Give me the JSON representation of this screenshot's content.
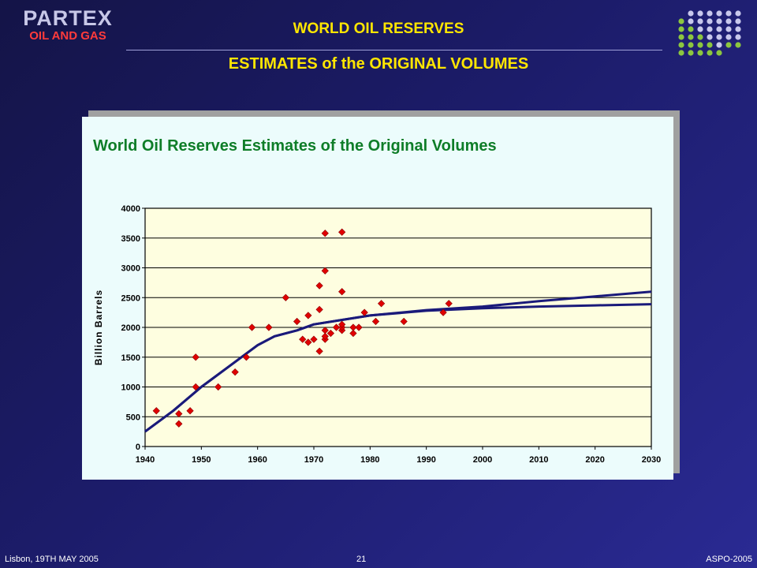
{
  "header": {
    "logo_main": "PARTEX",
    "logo_sub": "OIL AND GAS",
    "title": "WORLD OIL RESERVES",
    "subtitle": "ESTIMATES of the ORIGINAL VOLUMES"
  },
  "footer": {
    "left": "Lisbon, 19TH MAY 2005",
    "page": "21",
    "right": "ASPO-2005"
  },
  "colors": {
    "title_yellow": "#ffe600",
    "logo_red": "#ff3b3b",
    "chart_title_green": "#0e7d28",
    "plot_bg": "#fefee0",
    "marker_red": "#e00000",
    "curve_navy": "#1a1a7a",
    "dot_green": "#8cc63f",
    "dot_lavender": "#c8c8ec"
  },
  "chart_data": {
    "type": "scatter",
    "title": "World Oil Reserves Estimates of the Original Volumes",
    "ylabel": "Billion Barrels",
    "xlabel": "",
    "xlim": [
      1940,
      2030
    ],
    "ylim": [
      0,
      4000
    ],
    "xticks": [
      1940,
      1950,
      1960,
      1970,
      1980,
      1990,
      2000,
      2010,
      2020,
      2030
    ],
    "yticks": [
      0,
      500,
      1000,
      1500,
      2000,
      2500,
      3000,
      3500,
      4000
    ],
    "grid": "horizontal",
    "points": [
      [
        1942,
        600
      ],
      [
        1946,
        550
      ],
      [
        1946,
        380
      ],
      [
        1948,
        600
      ],
      [
        1949,
        1000
      ],
      [
        1949,
        1500
      ],
      [
        1953,
        1000
      ],
      [
        1956,
        1250
      ],
      [
        1958,
        1500
      ],
      [
        1959,
        2000
      ],
      [
        1962,
        2000
      ],
      [
        1965,
        2500
      ],
      [
        1967,
        2100
      ],
      [
        1968,
        1800
      ],
      [
        1969,
        1750
      ],
      [
        1969,
        2200
      ],
      [
        1970,
        1800
      ],
      [
        1971,
        1600
      ],
      [
        1971,
        2300
      ],
      [
        1971,
        2700
      ],
      [
        1972,
        1800
      ],
      [
        1972,
        1850
      ],
      [
        1972,
        1950
      ],
      [
        1972,
        2950
      ],
      [
        1972,
        3580
      ],
      [
        1973,
        1900
      ],
      [
        1974,
        2000
      ],
      [
        1975,
        1950
      ],
      [
        1975,
        2000
      ],
      [
        1975,
        2050
      ],
      [
        1975,
        2600
      ],
      [
        1975,
        3600
      ],
      [
        1977,
        1900
      ],
      [
        1977,
        2000
      ],
      [
        1978,
        2000
      ],
      [
        1979,
        2250
      ],
      [
        1981,
        2100
      ],
      [
        1982,
        2400
      ],
      [
        1986,
        2100
      ],
      [
        1993,
        2250
      ],
      [
        1994,
        2400
      ]
    ],
    "curves": [
      {
        "points": [
          [
            1940,
            250
          ],
          [
            1945,
            600
          ],
          [
            1950,
            1000
          ],
          [
            1955,
            1350
          ],
          [
            1960,
            1700
          ],
          [
            1963,
            1850
          ],
          [
            1967,
            1950
          ],
          [
            1970,
            2050
          ],
          [
            1980,
            2200
          ],
          [
            1990,
            2290
          ],
          [
            2000,
            2350
          ],
          [
            2010,
            2440
          ],
          [
            2020,
            2520
          ],
          [
            2030,
            2600
          ]
        ]
      },
      {
        "points": [
          [
            1940,
            250
          ],
          [
            1945,
            600
          ],
          [
            1950,
            1000
          ],
          [
            1955,
            1350
          ],
          [
            1960,
            1700
          ],
          [
            1963,
            1850
          ],
          [
            1967,
            1950
          ],
          [
            1970,
            2050
          ],
          [
            1980,
            2200
          ],
          [
            1990,
            2280
          ],
          [
            2000,
            2320
          ],
          [
            2010,
            2350
          ],
          [
            2020,
            2370
          ],
          [
            2030,
            2390
          ]
        ]
      }
    ]
  }
}
